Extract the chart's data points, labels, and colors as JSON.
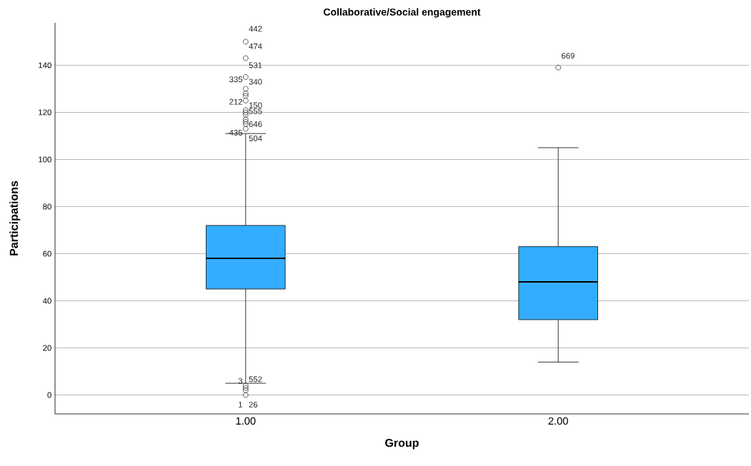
{
  "chart_data": {
    "type": "box",
    "title": "Collaborative/Social engagement",
    "xlabel": "Group",
    "ylabel": "Participations",
    "categories": [
      "1.00",
      "2.00"
    ],
    "color": "#33adff",
    "boxes": [
      {
        "low": 5,
        "q1": 45,
        "median": 58,
        "q3": 72,
        "high": 111,
        "outliers": [
          150,
          143,
          135,
          130,
          128,
          127,
          125,
          121,
          120,
          119,
          117,
          116,
          115,
          113,
          4,
          3,
          2,
          0
        ]
      },
      {
        "low": 14,
        "q1": 32,
        "median": 48,
        "q3": 63,
        "high": 105,
        "outliers": [
          139
        ]
      }
    ],
    "ylim": [
      -8,
      158
    ],
    "yticks": [
      0,
      20,
      40,
      60,
      80,
      100,
      120,
      140
    ],
    "grid": "y",
    "marker": "circle",
    "annotations": [
      "442",
      "474",
      "531",
      "335",
      "340",
      "212",
      "150",
      "555",
      "646",
      "435",
      "504",
      "3",
      "552",
      "1",
      "26",
      "669"
    ]
  }
}
